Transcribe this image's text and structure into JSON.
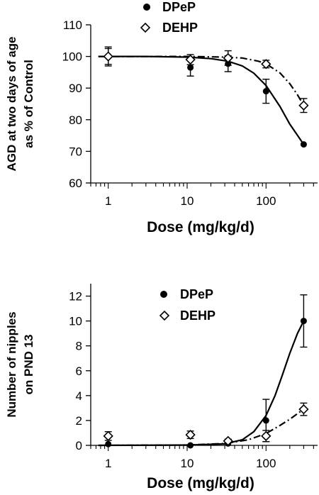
{
  "chart_data": [
    {
      "type": "line",
      "xscale": "log",
      "xlabel": "Dose (mg/kg/d)",
      "ylabel": [
        "AGD at two days of age",
        "as % of Control"
      ],
      "xlim": [
        0.6,
        450
      ],
      "ylim": [
        60,
        110
      ],
      "xticks": [
        1,
        10,
        100
      ],
      "xtick_labels": [
        "1",
        "10",
        "100"
      ],
      "yticks": [
        60,
        70,
        80,
        90,
        100,
        110
      ],
      "ytick_labels": [
        "60",
        "70",
        "80",
        "90",
        "100",
        "110"
      ],
      "legend_position": "top-center",
      "series": [
        {
          "name": "DPeP",
          "marker": "filled-circle",
          "line": "solid",
          "x": [
            1,
            11,
            33,
            100,
            300
          ],
          "y": [
            100,
            96.5,
            97.7,
            89,
            72.2
          ],
          "err": [
            3,
            2.7,
            2.5,
            3.8,
            0
          ],
          "fit_x": [
            0.75,
            1,
            3,
            10,
            20,
            33,
            50,
            70,
            100,
            150,
            200,
            250,
            300
          ],
          "fit_y": [
            100,
            100,
            100,
            99.8,
            99.3,
            98.5,
            97,
            94.7,
            90.8,
            84.2,
            78.6,
            75.1,
            72.2
          ]
        },
        {
          "name": "DEHP",
          "marker": "open-diamond",
          "line": "dash-dot",
          "x": [
            1,
            11,
            33,
            100,
            300
          ],
          "y": [
            100,
            99,
            99.5,
            97.6,
            84.5
          ],
          "err": [
            2.5,
            1.6,
            2.3,
            1.2,
            2.2
          ],
          "fit_x": [
            0.75,
            1,
            3,
            10,
            30,
            50,
            80,
            100,
            150,
            200,
            250,
            300
          ],
          "fit_y": [
            100,
            100,
            100,
            100,
            99.8,
            99.5,
            98.5,
            97.7,
            94.8,
            91.4,
            87.9,
            84.5
          ]
        }
      ]
    },
    {
      "type": "line",
      "xscale": "log",
      "xlabel": "Dose (mg/kg/d)",
      "ylabel": [
        "Number of nipples",
        "on PND 13"
      ],
      "xlim": [
        0.6,
        450
      ],
      "ylim": [
        0,
        13
      ],
      "xticks": [
        1,
        10,
        100
      ],
      "xtick_labels": [
        "1",
        "10",
        "100"
      ],
      "yticks": [
        0,
        2,
        4,
        6,
        8,
        10,
        12
      ],
      "ytick_labels": [
        "0",
        "2",
        "4",
        "6",
        "8",
        "10",
        "12"
      ],
      "legend_position": "top-center",
      "series": [
        {
          "name": "DPeP",
          "marker": "filled-circle",
          "line": "solid",
          "x": [
            1,
            11,
            33,
            100,
            300
          ],
          "y": [
            0.1,
            0,
            0.15,
            2,
            10
          ],
          "err": [
            0,
            0,
            0,
            1.7,
            2.1
          ],
          "fit_x": [
            0.75,
            10,
            30,
            50,
            70,
            100,
            130,
            160,
            200,
            250,
            300
          ],
          "fit_y": [
            0,
            0.02,
            0.12,
            0.45,
            1.1,
            2.4,
            4,
            5.6,
            7.4,
            9,
            10
          ]
        },
        {
          "name": "DEHP",
          "marker": "open-diamond",
          "line": "dash-dot",
          "x": [
            1,
            11,
            33,
            100,
            300
          ],
          "y": [
            0.75,
            0.85,
            0.35,
            0.75,
            2.9
          ],
          "err": [
            0.35,
            0.3,
            0.15,
            0.45,
            0.5
          ],
          "fit_x": [
            0.75,
            10,
            30,
            60,
            100,
            150,
            200,
            250,
            300
          ],
          "fit_y": [
            0,
            0.03,
            0.15,
            0.45,
            0.95,
            1.6,
            2.1,
            2.55,
            2.9
          ]
        }
      ]
    }
  ]
}
